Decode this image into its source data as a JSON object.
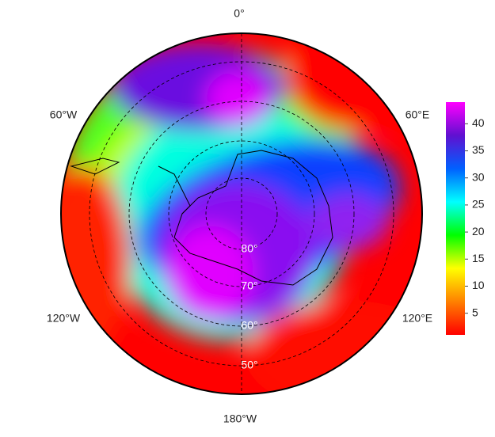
{
  "map": {
    "longitude_labels": [
      "0°",
      "60°E",
      "120°E",
      "180°W",
      "120°W",
      "60°W"
    ],
    "latitude_labels": [
      "80°",
      "70°",
      "60°",
      "50°"
    ],
    "colorbar": {
      "lim": [
        1,
        44
      ],
      "ticks": [
        5,
        10,
        15,
        20,
        25,
        30,
        35,
        40
      ],
      "colors": [
        "#ff0000",
        "#ff8000",
        "#ffff00",
        "#00ff00",
        "#00ffff",
        "#0060ff",
        "#6010d0",
        "#ff00ff"
      ]
    }
  }
}
